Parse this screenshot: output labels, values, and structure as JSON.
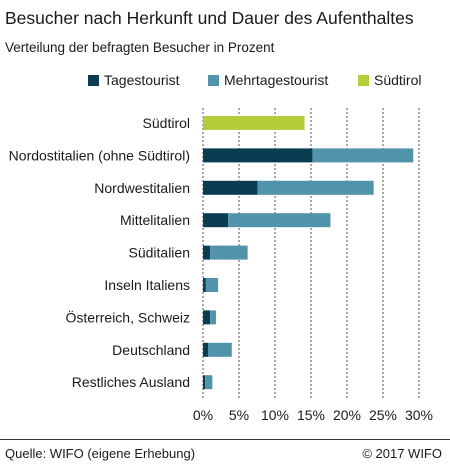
{
  "title": "Besucher nach Herkunft und Dauer des Aufenthaltes",
  "subtitle": "Verteilung der befragten Besucher in Prozent",
  "footer": {
    "source": "Quelle: WIFO (eigene Erhebung)",
    "copyright": "© 2017 WIFO"
  },
  "colors": {
    "tages": "#0b3d52",
    "mehrtages": "#5193ab",
    "suedtirol": "#b6cc3b",
    "grid": "#555555"
  },
  "chart_data": {
    "type": "bar",
    "orientation": "horizontal",
    "stacked": true,
    "title": "Besucher nach Herkunft und Dauer des Aufenthaltes",
    "subtitle": "Verteilung der befragten Besucher in Prozent",
    "categories": [
      "Südtirol",
      "Nordostitalien (ohne Südtirol)",
      "Nordwestitalien",
      "Mittelitalien",
      "Süditalien",
      "Inseln Italiens",
      "Österreich, Schweiz",
      "Deutschland",
      "Restliches Ausland"
    ],
    "series": [
      {
        "name": "Tagestourist",
        "color": "#0b3d52",
        "values": [
          0,
          15.2,
          7.6,
          3.5,
          1.0,
          0.4,
          1.0,
          0.7,
          0.3
        ]
      },
      {
        "name": "Mehrtagestourist",
        "color": "#5193ab",
        "values": [
          0,
          14.0,
          16.1,
          14.2,
          5.2,
          1.7,
          0.8,
          3.3,
          1.0
        ]
      },
      {
        "name": "Südtirol",
        "color": "#b6cc3b",
        "values": [
          14.1,
          0,
          0,
          0,
          0,
          0,
          0,
          0,
          0
        ]
      }
    ],
    "xlim": [
      0,
      30
    ],
    "xticks": [
      "0%",
      "5%",
      "10%",
      "15%",
      "20%",
      "25%",
      "30%"
    ],
    "grid": "vertical dashed",
    "legend": "top"
  }
}
